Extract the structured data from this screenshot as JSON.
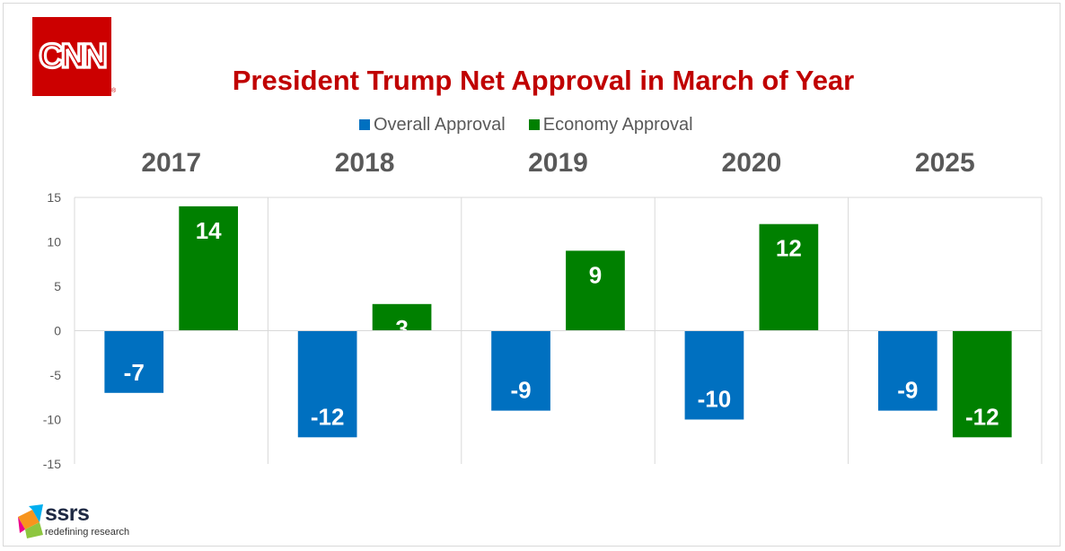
{
  "logos": {
    "cnn": "CNN",
    "cnn_mark": "®",
    "ssrs_name": "ssrs",
    "ssrs_tagline": "redefining research"
  },
  "colors": {
    "overall": "#0070c0",
    "economy": "#008000",
    "title": "#c00000",
    "axis_text": "#595959",
    "grid": "#d9d9d9"
  },
  "chart_data": {
    "type": "bar",
    "title": "President Trump Net Approval in March of Year",
    "categories": [
      "2017",
      "2018",
      "2019",
      "2020",
      "2025"
    ],
    "series": [
      {
        "name": "Overall Approval",
        "values": [
          -7,
          -12,
          -9,
          -10,
          -9
        ]
      },
      {
        "name": "Economy Approval",
        "values": [
          14,
          3,
          9,
          12,
          -12
        ]
      }
    ],
    "ylim": [
      -15,
      15
    ],
    "yticks": [
      15,
      10,
      5,
      0,
      -5,
      -10,
      -15
    ],
    "legend": "top",
    "category_labels_position": "top",
    "grid": true
  }
}
